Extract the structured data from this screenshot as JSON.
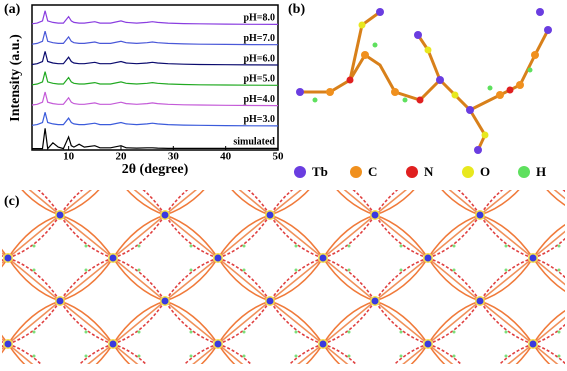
{
  "chart_data": {
    "type": "line",
    "label": "(a)",
    "x_label": "2θ (degree)",
    "y_label": "Intensity (a.u.)",
    "x": [
      3,
      4,
      5,
      5.5,
      6,
      7,
      8,
      9,
      10,
      10.5,
      11,
      12,
      13,
      15,
      16,
      18,
      20,
      21,
      23,
      25,
      26,
      27,
      29,
      32,
      35,
      40,
      45,
      50
    ],
    "xlim": [
      3,
      50
    ],
    "xticks": [
      10,
      20,
      30,
      40,
      50
    ],
    "ylim": [
      0,
      100
    ],
    "series": [
      {
        "name": "simulated",
        "color": "#000000",
        "values": [
          1,
          1,
          1,
          15,
          1,
          5,
          2,
          1,
          9,
          3,
          2,
          4,
          2,
          3,
          1.5,
          1.5,
          3,
          1.5,
          1.3,
          1.5,
          1.5,
          1.3,
          1.1,
          1.1,
          1.1,
          1.1,
          1.1,
          1.1
        ]
      },
      {
        "name": "pH=3.0",
        "color": "#3b5bdb",
        "values": [
          17,
          17.5,
          19,
          26,
          19,
          18,
          17.5,
          17.5,
          22,
          19,
          18,
          17.5,
          17.5,
          18.5,
          17.5,
          17.5,
          19,
          18,
          17.5,
          18,
          18.5,
          18,
          17.5,
          17.2,
          17,
          16.8,
          16.7,
          16.6
        ]
      },
      {
        "name": "pH=4.0",
        "color": "#c45ad8",
        "values": [
          31,
          31.5,
          33,
          40,
          33,
          32,
          31.5,
          31.5,
          36,
          33,
          32,
          31.5,
          31.5,
          32.5,
          31.5,
          31.5,
          33,
          32,
          31.5,
          32,
          32.5,
          32,
          31.5,
          31.2,
          31,
          30.8,
          30.7,
          30.6
        ]
      },
      {
        "name": "pH=5.0",
        "color": "#22aa22",
        "values": [
          45,
          45.5,
          47,
          54,
          47,
          46,
          45.5,
          45.5,
          50,
          47,
          46,
          45.5,
          45.5,
          46.5,
          45.5,
          45.5,
          47,
          46,
          45.5,
          46,
          46.5,
          46,
          45.5,
          45.2,
          45,
          44.8,
          44.7,
          44.6
        ]
      },
      {
        "name": "pH=6.0",
        "color": "#0b0b6e",
        "values": [
          59,
          59.5,
          61,
          68,
          61,
          60,
          59.5,
          59.5,
          64,
          61,
          60,
          59.5,
          59.5,
          60.5,
          59.5,
          59.5,
          61,
          60,
          59.5,
          60,
          60.5,
          60,
          59.5,
          59.2,
          59,
          58.8,
          58.7,
          58.6
        ]
      },
      {
        "name": "pH=7.0",
        "color": "#4a58d8",
        "values": [
          73,
          73.5,
          75,
          82,
          75,
          74,
          73.5,
          73.5,
          78,
          75,
          74,
          73.5,
          73.5,
          74.5,
          73.5,
          73.5,
          75,
          74,
          73.5,
          74,
          74.5,
          74,
          73.5,
          73.2,
          73,
          72.8,
          72.7,
          72.6
        ]
      },
      {
        "name": "pH=8.0",
        "color": "#8a3ee0",
        "values": [
          87,
          87.5,
          89,
          96,
          89,
          88,
          87.5,
          87.5,
          92,
          89,
          88,
          87.5,
          87.5,
          88.5,
          87.5,
          87.5,
          89,
          88,
          87.5,
          88,
          88.5,
          88,
          87.5,
          87.2,
          87,
          86.8,
          86.7,
          86.6
        ]
      }
    ]
  },
  "panel_b": {
    "label": "(b)",
    "legend": [
      {
        "symbol": "Tb",
        "color": "#6a3de0"
      },
      {
        "symbol": "C",
        "color": "#f0901e"
      },
      {
        "symbol": "N",
        "color": "#e02020"
      },
      {
        "symbol": "O",
        "color": "#e8e81e"
      },
      {
        "symbol": "H",
        "color": "#5ee05e"
      }
    ]
  },
  "panel_c": {
    "label": "(c)"
  }
}
